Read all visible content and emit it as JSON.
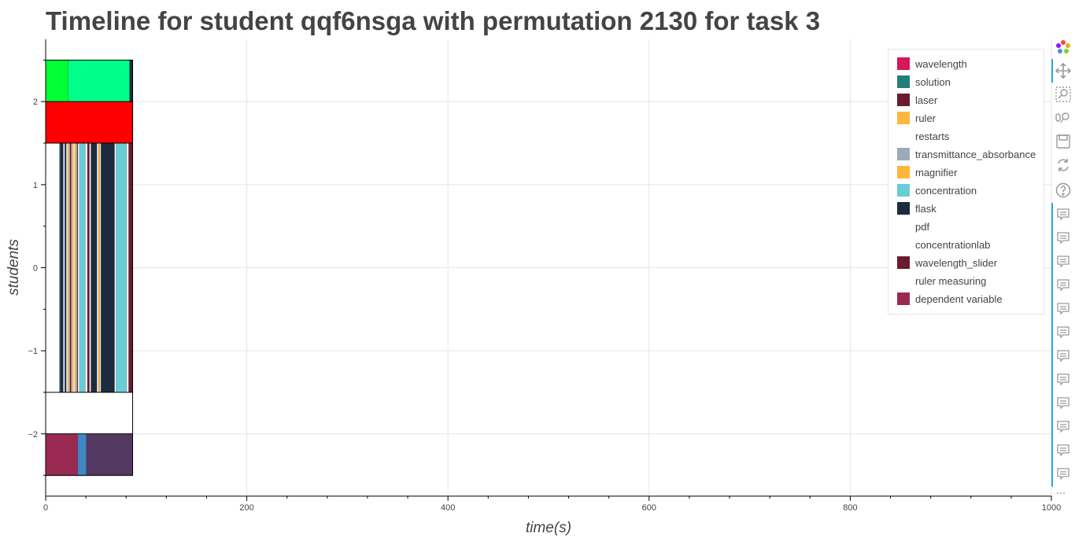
{
  "chart_data": {
    "type": "bar",
    "title": "Timeline for student qqf6nsga with permutation 2130 for task 3",
    "xlabel": "time(s)",
    "ylabel": "students",
    "xlim": [
      0,
      1000
    ],
    "ylim": [
      -2.75,
      2.75
    ],
    "x_ticks": [
      0,
      200,
      400,
      600,
      800,
      1000
    ],
    "y_ticks": [
      -2,
      -1,
      0,
      1,
      2
    ],
    "grid": true,
    "legend_position": "top-right",
    "legend": [
      {
        "label": "wavelength",
        "color": "#d6175a"
      },
      {
        "label": "solution",
        "color": "#217e78"
      },
      {
        "label": "laser",
        "color": "#6b1b2e"
      },
      {
        "label": "ruler",
        "color": "#fdb73c"
      },
      {
        "label": "restarts",
        "color": null
      },
      {
        "label": "transmittance_absorbance",
        "color": "#9eaab9"
      },
      {
        "label": "magnifier",
        "color": "#fdb73c"
      },
      {
        "label": "concentration",
        "color": "#69ccd9"
      },
      {
        "label": "flask",
        "color": "#1c2b3e"
      },
      {
        "label": "pdf",
        "color": null
      },
      {
        "label": "concentrationlab",
        "color": null
      },
      {
        "label": "wavelength_slider",
        "color": "#6b1b2e"
      },
      {
        "label": "ruler measuring",
        "color": null
      },
      {
        "label": "dependent variable",
        "color": "#9b2a52"
      }
    ],
    "rows": [
      {
        "y_from": 2.0,
        "y_to": 2.5,
        "segments": [
          {
            "start": 0,
            "end": 22.5,
            "color": "#00ff33"
          },
          {
            "start": 22.5,
            "end": 83.5,
            "color": "#00ff88"
          },
          {
            "start": 83.5,
            "end": 86.5,
            "color": "#1c2b3e"
          }
        ]
      },
      {
        "y_from": 1.5,
        "y_to": 2.0,
        "segments": [
          {
            "start": 0,
            "end": 86.5,
            "color": "#ff0000"
          }
        ]
      },
      {
        "y_from": -1.5,
        "y_to": 1.5,
        "segments": [
          {
            "start": 13.5,
            "end": 14.5,
            "color": "#69ccd9"
          },
          {
            "start": 14.5,
            "end": 17.5,
            "color": "#1c2b3e"
          },
          {
            "start": 19.0,
            "end": 20.5,
            "color": "#1c2b3e"
          },
          {
            "start": 22.0,
            "end": 23.0,
            "color": "#fdb73c"
          },
          {
            "start": 24.0,
            "end": 25.5,
            "color": "#6b1b2e"
          },
          {
            "start": 26.5,
            "end": 27.5,
            "color": "#fdb73c"
          },
          {
            "start": 29.0,
            "end": 30.0,
            "color": "#fdb73c"
          },
          {
            "start": 31.0,
            "end": 32.0,
            "color": "#6b1b2e"
          },
          {
            "start": 33.5,
            "end": 39.5,
            "color": "#69ccd9"
          },
          {
            "start": 41.5,
            "end": 43.5,
            "color": "#6b1b2e"
          },
          {
            "start": 45.0,
            "end": 51.0,
            "color": "#1c2b3e"
          },
          {
            "start": 52.5,
            "end": 54.0,
            "color": "#fdb73c"
          },
          {
            "start": 55.0,
            "end": 68.5,
            "color": "#1c2b3e"
          },
          {
            "start": 70.0,
            "end": 80.5,
            "color": "#69ccd9"
          },
          {
            "start": 82.5,
            "end": 86.5,
            "color": "#6b1b2e"
          }
        ]
      },
      {
        "y_from": -2.0,
        "y_to": -1.5,
        "segments": []
      },
      {
        "y_from": -2.5,
        "y_to": -2.0,
        "segments": [
          {
            "start": 0,
            "end": 32.0,
            "color": "#9b2a52"
          },
          {
            "start": 32.0,
            "end": 40.5,
            "color": "#3f88c5"
          },
          {
            "start": 40.5,
            "end": 86.5,
            "color": "#543a62"
          }
        ]
      }
    ]
  },
  "toolbar": {
    "tools": [
      {
        "icon": "bokeh-logo-icon",
        "interactive": false
      },
      {
        "icon": "pan-icon",
        "interactive": true,
        "active": true
      },
      {
        "icon": "box-zoom-icon",
        "interactive": true
      },
      {
        "icon": "wheel-zoom-icon",
        "interactive": true
      },
      {
        "icon": "save-icon",
        "interactive": true
      },
      {
        "icon": "reset-icon",
        "interactive": true
      },
      {
        "icon": "help-icon",
        "interactive": true
      },
      {
        "icon": "hover-icon",
        "interactive": true
      },
      {
        "icon": "hover-icon",
        "interactive": true
      },
      {
        "icon": "hover-icon",
        "interactive": true
      },
      {
        "icon": "hover-icon",
        "interactive": true
      },
      {
        "icon": "hover-icon",
        "interactive": true
      },
      {
        "icon": "hover-icon",
        "interactive": true
      },
      {
        "icon": "hover-icon",
        "interactive": true
      },
      {
        "icon": "hover-icon",
        "interactive": true
      },
      {
        "icon": "hover-icon",
        "interactive": true
      },
      {
        "icon": "hover-icon",
        "interactive": true
      },
      {
        "icon": "hover-icon",
        "interactive": true
      },
      {
        "icon": "hover-icon",
        "interactive": true
      }
    ],
    "more_label": "⋯"
  }
}
